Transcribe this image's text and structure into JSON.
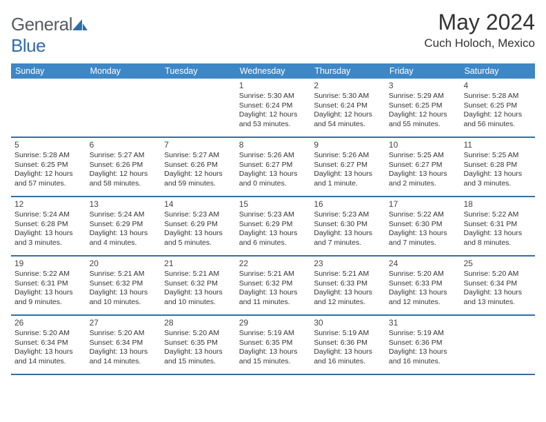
{
  "brand": {
    "name_a": "General",
    "name_b": "Blue"
  },
  "header": {
    "title": "May 2024",
    "location": "Cuch Holoch, Mexico"
  },
  "colors": {
    "accent": "#3d87c7",
    "rule": "#2f6da8",
    "text": "#333333",
    "logo_gray": "#555b60",
    "logo_blue": "#2f6da8",
    "background": "#ffffff"
  },
  "dow": [
    "Sunday",
    "Monday",
    "Tuesday",
    "Wednesday",
    "Thursday",
    "Friday",
    "Saturday"
  ],
  "weeks": [
    [
      null,
      null,
      null,
      {
        "n": "1",
        "sr": "Sunrise: 5:30 AM",
        "ss": "Sunset: 6:24 PM",
        "dl": "Daylight: 12 hours and 53 minutes."
      },
      {
        "n": "2",
        "sr": "Sunrise: 5:30 AM",
        "ss": "Sunset: 6:24 PM",
        "dl": "Daylight: 12 hours and 54 minutes."
      },
      {
        "n": "3",
        "sr": "Sunrise: 5:29 AM",
        "ss": "Sunset: 6:25 PM",
        "dl": "Daylight: 12 hours and 55 minutes."
      },
      {
        "n": "4",
        "sr": "Sunrise: 5:28 AM",
        "ss": "Sunset: 6:25 PM",
        "dl": "Daylight: 12 hours and 56 minutes."
      }
    ],
    [
      {
        "n": "5",
        "sr": "Sunrise: 5:28 AM",
        "ss": "Sunset: 6:25 PM",
        "dl": "Daylight: 12 hours and 57 minutes."
      },
      {
        "n": "6",
        "sr": "Sunrise: 5:27 AM",
        "ss": "Sunset: 6:26 PM",
        "dl": "Daylight: 12 hours and 58 minutes."
      },
      {
        "n": "7",
        "sr": "Sunrise: 5:27 AM",
        "ss": "Sunset: 6:26 PM",
        "dl": "Daylight: 12 hours and 59 minutes."
      },
      {
        "n": "8",
        "sr": "Sunrise: 5:26 AM",
        "ss": "Sunset: 6:27 PM",
        "dl": "Daylight: 13 hours and 0 minutes."
      },
      {
        "n": "9",
        "sr": "Sunrise: 5:26 AM",
        "ss": "Sunset: 6:27 PM",
        "dl": "Daylight: 13 hours and 1 minute."
      },
      {
        "n": "10",
        "sr": "Sunrise: 5:25 AM",
        "ss": "Sunset: 6:27 PM",
        "dl": "Daylight: 13 hours and 2 minutes."
      },
      {
        "n": "11",
        "sr": "Sunrise: 5:25 AM",
        "ss": "Sunset: 6:28 PM",
        "dl": "Daylight: 13 hours and 3 minutes."
      }
    ],
    [
      {
        "n": "12",
        "sr": "Sunrise: 5:24 AM",
        "ss": "Sunset: 6:28 PM",
        "dl": "Daylight: 13 hours and 3 minutes."
      },
      {
        "n": "13",
        "sr": "Sunrise: 5:24 AM",
        "ss": "Sunset: 6:29 PM",
        "dl": "Daylight: 13 hours and 4 minutes."
      },
      {
        "n": "14",
        "sr": "Sunrise: 5:23 AM",
        "ss": "Sunset: 6:29 PM",
        "dl": "Daylight: 13 hours and 5 minutes."
      },
      {
        "n": "15",
        "sr": "Sunrise: 5:23 AM",
        "ss": "Sunset: 6:29 PM",
        "dl": "Daylight: 13 hours and 6 minutes."
      },
      {
        "n": "16",
        "sr": "Sunrise: 5:23 AM",
        "ss": "Sunset: 6:30 PM",
        "dl": "Daylight: 13 hours and 7 minutes."
      },
      {
        "n": "17",
        "sr": "Sunrise: 5:22 AM",
        "ss": "Sunset: 6:30 PM",
        "dl": "Daylight: 13 hours and 7 minutes."
      },
      {
        "n": "18",
        "sr": "Sunrise: 5:22 AM",
        "ss": "Sunset: 6:31 PM",
        "dl": "Daylight: 13 hours and 8 minutes."
      }
    ],
    [
      {
        "n": "19",
        "sr": "Sunrise: 5:22 AM",
        "ss": "Sunset: 6:31 PM",
        "dl": "Daylight: 13 hours and 9 minutes."
      },
      {
        "n": "20",
        "sr": "Sunrise: 5:21 AM",
        "ss": "Sunset: 6:32 PM",
        "dl": "Daylight: 13 hours and 10 minutes."
      },
      {
        "n": "21",
        "sr": "Sunrise: 5:21 AM",
        "ss": "Sunset: 6:32 PM",
        "dl": "Daylight: 13 hours and 10 minutes."
      },
      {
        "n": "22",
        "sr": "Sunrise: 5:21 AM",
        "ss": "Sunset: 6:32 PM",
        "dl": "Daylight: 13 hours and 11 minutes."
      },
      {
        "n": "23",
        "sr": "Sunrise: 5:21 AM",
        "ss": "Sunset: 6:33 PM",
        "dl": "Daylight: 13 hours and 12 minutes."
      },
      {
        "n": "24",
        "sr": "Sunrise: 5:20 AM",
        "ss": "Sunset: 6:33 PM",
        "dl": "Daylight: 13 hours and 12 minutes."
      },
      {
        "n": "25",
        "sr": "Sunrise: 5:20 AM",
        "ss": "Sunset: 6:34 PM",
        "dl": "Daylight: 13 hours and 13 minutes."
      }
    ],
    [
      {
        "n": "26",
        "sr": "Sunrise: 5:20 AM",
        "ss": "Sunset: 6:34 PM",
        "dl": "Daylight: 13 hours and 14 minutes."
      },
      {
        "n": "27",
        "sr": "Sunrise: 5:20 AM",
        "ss": "Sunset: 6:34 PM",
        "dl": "Daylight: 13 hours and 14 minutes."
      },
      {
        "n": "28",
        "sr": "Sunrise: 5:20 AM",
        "ss": "Sunset: 6:35 PM",
        "dl": "Daylight: 13 hours and 15 minutes."
      },
      {
        "n": "29",
        "sr": "Sunrise: 5:19 AM",
        "ss": "Sunset: 6:35 PM",
        "dl": "Daylight: 13 hours and 15 minutes."
      },
      {
        "n": "30",
        "sr": "Sunrise: 5:19 AM",
        "ss": "Sunset: 6:36 PM",
        "dl": "Daylight: 13 hours and 16 minutes."
      },
      {
        "n": "31",
        "sr": "Sunrise: 5:19 AM",
        "ss": "Sunset: 6:36 PM",
        "dl": "Daylight: 13 hours and 16 minutes."
      },
      null
    ]
  ]
}
